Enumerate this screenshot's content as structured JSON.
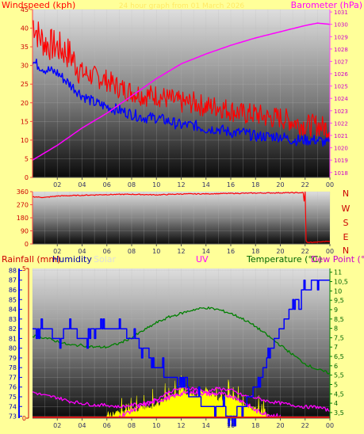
{
  "title_watermark": "24 hour graph from 01 March 2026",
  "colors": {
    "page_bg": "#ffff99",
    "wind_speed": "#ff0000",
    "wind_avg": "#0000ff",
    "barometer": "#ff00ff",
    "wind_dir": "#ff0000",
    "rain_axis": "#cc0000",
    "humidity": "#0000ff",
    "solar": "#ffff00",
    "uv": "#ff00ff",
    "temperature": "#008000",
    "dew_point": "#ff00ff",
    "title_ws": "#ff0000",
    "title_humidity": "#0000aa",
    "title_solar": "#dddddd",
    "title_temp": "#006600",
    "title_dew": "#cc00cc"
  },
  "top_labels": {
    "left": "Windspeed (kph)",
    "right": "Barometer (hPa)"
  },
  "dir_labels": [
    "N",
    "W",
    "S",
    "E",
    "N"
  ],
  "bottom_labels": {
    "rain": "Rainfall (mm)",
    "humidity": "Humidity",
    "solar": "Solar",
    "uv": "UV",
    "temperature": "Temperature (°C)",
    "dew_point": "Dew Point (°C"
  },
  "x_ticks": [
    "02",
    "04",
    "06",
    "08",
    "10",
    "12",
    "14",
    "16",
    "18",
    "20",
    "22",
    "00"
  ],
  "chart_data": [
    {
      "type": "line",
      "panel": "wind-barometer",
      "x_unit": "hour",
      "x_range": [
        0,
        24
      ],
      "series": [
        {
          "name": "Windspeed (kph)",
          "axis": "left",
          "x": [
            0,
            0.5,
            1,
            2,
            3,
            4,
            5,
            6,
            7,
            8,
            9,
            10,
            11,
            12,
            13,
            14,
            15,
            16,
            17,
            18,
            19,
            20,
            21,
            22,
            23,
            24
          ],
          "values": [
            42,
            38,
            36,
            35,
            33,
            28,
            27,
            26,
            24,
            23,
            22,
            22,
            21,
            20,
            20,
            19,
            19,
            18,
            17,
            17,
            16,
            16,
            15,
            14,
            14,
            13
          ]
        },
        {
          "name": "Wind average",
          "axis": "left",
          "x": [
            0,
            0.5,
            1,
            2,
            3,
            4,
            5,
            6,
            7,
            8,
            9,
            10,
            11,
            12,
            13,
            14,
            15,
            16,
            17,
            18,
            19,
            20,
            21,
            22,
            23,
            24
          ],
          "values": [
            31,
            30,
            29,
            28,
            25,
            22,
            20,
            19,
            18,
            17,
            16,
            16,
            15,
            14,
            14,
            13,
            13,
            12,
            12,
            11,
            11,
            11,
            10,
            10,
            10,
            9
          ]
        },
        {
          "name": "Barometer (hPa)",
          "axis": "right",
          "x": [
            0,
            2,
            4,
            6,
            8,
            10,
            12,
            14,
            16,
            18,
            20,
            22,
            23,
            24
          ],
          "values": [
            1019.0,
            1020.2,
            1021.6,
            1022.8,
            1024.2,
            1025.6,
            1026.8,
            1027.6,
            1028.3,
            1028.9,
            1029.4,
            1029.9,
            1030.1,
            1030.0
          ]
        }
      ],
      "y_left": {
        "label": "Windspeed (kph)",
        "range": [
          0,
          45
        ],
        "ticks": [
          0,
          5,
          10,
          15,
          20,
          25,
          30,
          35,
          40,
          45
        ]
      },
      "y_right": {
        "label": "Barometer (hPa)",
        "range": [
          1017.6,
          1031.2
        ],
        "ticks": [
          1018,
          1019,
          1020,
          1021,
          1022,
          1023,
          1024,
          1025,
          1026,
          1027,
          1028,
          1029,
          1030,
          1031
        ]
      },
      "grid": true
    },
    {
      "type": "line",
      "panel": "wind-direction",
      "x_unit": "hour",
      "x_range": [
        0,
        24
      ],
      "series": [
        {
          "name": "Wind direction",
          "x": [
            0,
            1,
            2,
            4,
            6,
            8,
            10,
            12,
            14,
            16,
            18,
            20,
            21.9,
            22,
            22.1,
            23,
            24
          ],
          "values": [
            325,
            320,
            330,
            335,
            340,
            342,
            338,
            344,
            345,
            348,
            350,
            352,
            353,
            60,
            10,
            12,
            20
          ]
        }
      ],
      "y_left": {
        "range": [
          0,
          360
        ],
        "ticks": [
          0,
          90,
          180,
          270,
          360
        ]
      },
      "grid": true
    },
    {
      "type": "line",
      "panel": "rain-humidity-solar-uv-temperature",
      "x_unit": "hour",
      "x_range": [
        0,
        24
      ],
      "series": [
        {
          "name": "Humidity",
          "axis": "humidity",
          "x": [
            0,
            1,
            2,
            3,
            4,
            5,
            6,
            7,
            8,
            9,
            10,
            11,
            12,
            13,
            14,
            15,
            16,
            17,
            18,
            19,
            20,
            21,
            22,
            23,
            24
          ],
          "values": [
            82,
            82,
            81,
            82,
            81,
            82,
            82,
            82,
            81,
            80,
            78,
            77,
            76,
            75,
            74,
            74,
            73,
            74,
            76,
            79,
            82,
            84,
            86,
            87,
            87
          ]
        },
        {
          "name": "Temperature (°C)",
          "axis": "temp",
          "x": [
            0,
            1,
            2,
            3,
            4,
            5,
            6,
            7,
            8,
            9,
            10,
            11,
            12,
            13,
            14,
            15,
            16,
            17,
            18,
            19,
            20,
            21,
            22,
            23,
            24
          ],
          "values": [
            7.6,
            7.5,
            7.3,
            7.1,
            7.1,
            7.0,
            7.0,
            7.2,
            7.5,
            7.9,
            8.3,
            8.6,
            8.8,
            9.0,
            9.1,
            9.0,
            8.8,
            8.5,
            8.1,
            7.6,
            7.1,
            6.6,
            6.1,
            5.8,
            5.6
          ]
        },
        {
          "name": "Dew Point (°C)",
          "axis": "temp",
          "x": [
            0,
            1,
            2,
            3,
            4,
            5,
            6,
            7,
            8,
            9,
            10,
            11,
            12,
            13,
            14,
            15,
            16,
            17,
            18,
            19,
            20,
            21,
            22,
            23,
            24
          ],
          "values": [
            4.6,
            4.4,
            4.3,
            4.1,
            4.0,
            3.9,
            3.9,
            3.8,
            3.9,
            4.0,
            4.2,
            4.6,
            4.8,
            4.8,
            4.6,
            4.8,
            4.7,
            4.4,
            4.3,
            4.1,
            4.0,
            3.9,
            3.8,
            3.8,
            3.6
          ]
        },
        {
          "name": "UV",
          "axis": "temp",
          "x": [
            7,
            8,
            9,
            10,
            11,
            12,
            13,
            14,
            15,
            16,
            17,
            18,
            19,
            20
          ],
          "values": [
            3.3,
            3.6,
            3.9,
            4.1,
            4.3,
            4.5,
            4.6,
            4.5,
            4.5,
            4.4,
            4.1,
            3.6,
            3.4,
            3.3
          ]
        },
        {
          "name": "Solar",
          "axis": "temp",
          "type": "area",
          "x": [
            6,
            7,
            8,
            9,
            10,
            11,
            12,
            13,
            14,
            15,
            16,
            17,
            18,
            19
          ],
          "values": [
            3.3,
            3.45,
            3.6,
            3.8,
            3.9,
            4.3,
            4.6,
            4.4,
            4.7,
            4.2,
            4.4,
            3.8,
            3.7,
            3.3
          ]
        },
        {
          "name": "Rainfall (mm)",
          "axis": "rain",
          "x": [
            0,
            24
          ],
          "values": [
            0,
            0
          ]
        }
      ],
      "y_rain": {
        "label": "Rainfall (mm)",
        "range": [
          0,
          5
        ],
        "ticks": [
          0,
          5
        ]
      },
      "y_humidity": {
        "label": "Humidity",
        "range": [
          72.8,
          88.2
        ],
        "ticks": [
          73,
          74,
          75,
          76,
          77,
          78,
          79,
          80,
          81,
          82,
          83,
          84,
          85,
          86,
          87,
          88
        ]
      },
      "y_temp": {
        "label": "Temperature (°C)",
        "range": [
          3.2,
          11.2
        ],
        "ticks": [
          3.5,
          4,
          4.5,
          5,
          5.5,
          6,
          6.5,
          7,
          7.5,
          8,
          8.5,
          9,
          9.5,
          10,
          10.5,
          11
        ]
      },
      "grid": true
    }
  ]
}
